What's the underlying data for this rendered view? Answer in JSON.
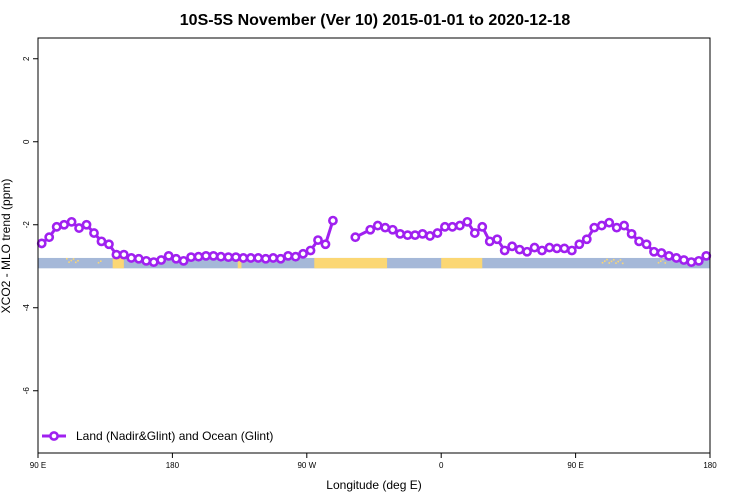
{
  "chart_data": {
    "type": "line",
    "title": "10S-5S November (Ver 10)   2015-01-01 to 2020-12-18",
    "xlabel": "Longitude (deg E)",
    "ylabel": "XCO2 - MLO trend (ppm)",
    "xlim": [
      90,
      450
    ],
    "ylim": [
      -7.5,
      2.5
    ],
    "x_ticks": [
      {
        "value": 90,
        "label": "90 E"
      },
      {
        "value": 162,
        "label": "180"
      },
      {
        "value": 234,
        "label": "90 W"
      },
      {
        "value": 306,
        "label": "0"
      },
      {
        "value": 378,
        "label": "90 E"
      },
      {
        "value": 450,
        "label": "180"
      }
    ],
    "y_ticks": [
      {
        "value": 2,
        "label": "2"
      },
      {
        "value": 0,
        "label": "0"
      },
      {
        "value": -2,
        "label": "-2"
      },
      {
        "value": -4,
        "label": "-4"
      },
      {
        "value": -6,
        "label": "-6"
      }
    ],
    "legend_position": "bottom-left",
    "series": [
      {
        "name": "Land (Nadir&Glint) and Ocean (Glint)",
        "color": "#a020f0",
        "points": [
          [
            92,
            -2.45
          ],
          [
            96,
            -2.3
          ],
          [
            100,
            -2.05
          ],
          [
            104,
            -2.0
          ],
          [
            108,
            -1.93
          ],
          [
            112,
            -2.08
          ],
          [
            116,
            -2.0
          ],
          [
            120,
            -2.2
          ],
          [
            124,
            -2.4
          ],
          [
            128,
            -2.47
          ],
          [
            132,
            -2.72
          ],
          [
            136,
            -2.72
          ],
          [
            140,
            -2.8
          ],
          [
            144,
            -2.82
          ],
          [
            148,
            -2.87
          ],
          [
            152,
            -2.9
          ],
          [
            156,
            -2.85
          ],
          [
            160,
            -2.75
          ],
          [
            164,
            -2.82
          ],
          [
            168,
            -2.87
          ],
          [
            172,
            -2.78
          ],
          [
            176,
            -2.77
          ],
          [
            180,
            -2.75
          ],
          [
            184,
            -2.75
          ],
          [
            188,
            -2.77
          ],
          [
            192,
            -2.78
          ],
          [
            196,
            -2.78
          ],
          [
            200,
            -2.8
          ],
          [
            204,
            -2.8
          ],
          [
            208,
            -2.8
          ],
          [
            212,
            -2.82
          ],
          [
            216,
            -2.8
          ],
          [
            220,
            -2.82
          ],
          [
            224,
            -2.75
          ],
          [
            228,
            -2.77
          ],
          [
            232,
            -2.7
          ],
          [
            236,
            -2.62
          ],
          [
            240,
            -2.37
          ],
          [
            244,
            -2.47
          ],
          [
            248,
            -1.9
          ],
          null,
          [
            260,
            -2.3
          ],
          [
            268,
            -2.12
          ],
          [
            272,
            -2.02
          ],
          [
            276,
            -2.07
          ],
          [
            280,
            -2.12
          ],
          [
            284,
            -2.22
          ],
          [
            288,
            -2.25
          ],
          [
            292,
            -2.25
          ],
          [
            296,
            -2.22
          ],
          [
            300,
            -2.27
          ],
          [
            304,
            -2.2
          ],
          [
            308,
            -2.05
          ],
          [
            312,
            -2.05
          ],
          [
            316,
            -2.02
          ],
          [
            320,
            -1.93
          ],
          [
            324,
            -2.2
          ],
          [
            328,
            -2.05
          ],
          [
            332,
            -2.4
          ],
          [
            336,
            -2.35
          ],
          [
            340,
            -2.62
          ],
          [
            344,
            -2.52
          ],
          [
            348,
            -2.6
          ],
          [
            352,
            -2.65
          ],
          [
            356,
            -2.55
          ],
          [
            360,
            -2.62
          ],
          [
            364,
            -2.55
          ],
          [
            368,
            -2.57
          ],
          [
            372,
            -2.57
          ],
          [
            376,
            -2.62
          ],
          [
            380,
            -2.47
          ],
          [
            384,
            -2.35
          ],
          [
            388,
            -2.07
          ],
          [
            392,
            -2.02
          ],
          [
            396,
            -1.95
          ],
          [
            400,
            -2.07
          ],
          [
            404,
            -2.02
          ],
          [
            408,
            -2.22
          ],
          [
            412,
            -2.4
          ],
          [
            416,
            -2.47
          ],
          [
            420,
            -2.65
          ],
          [
            424,
            -2.68
          ],
          [
            428,
            -2.75
          ],
          [
            432,
            -2.8
          ],
          [
            436,
            -2.85
          ],
          [
            440,
            -2.9
          ],
          [
            444,
            -2.87
          ],
          [
            448,
            -2.75
          ]
        ]
      }
    ],
    "band": {
      "y_range": [
        -3.05,
        -2.8
      ],
      "ocean_color": "#a5b8d8",
      "land_color": "#fbd774",
      "land_segments": [
        [
          130,
          136
        ],
        [
          238,
          277
        ],
        [
          306,
          328
        ],
        [
          197,
          199
        ]
      ],
      "land_specks": [
        [
          105,
          112
        ],
        [
          122,
          124
        ],
        [
          392,
          403
        ],
        [
          422,
          426
        ]
      ]
    }
  }
}
